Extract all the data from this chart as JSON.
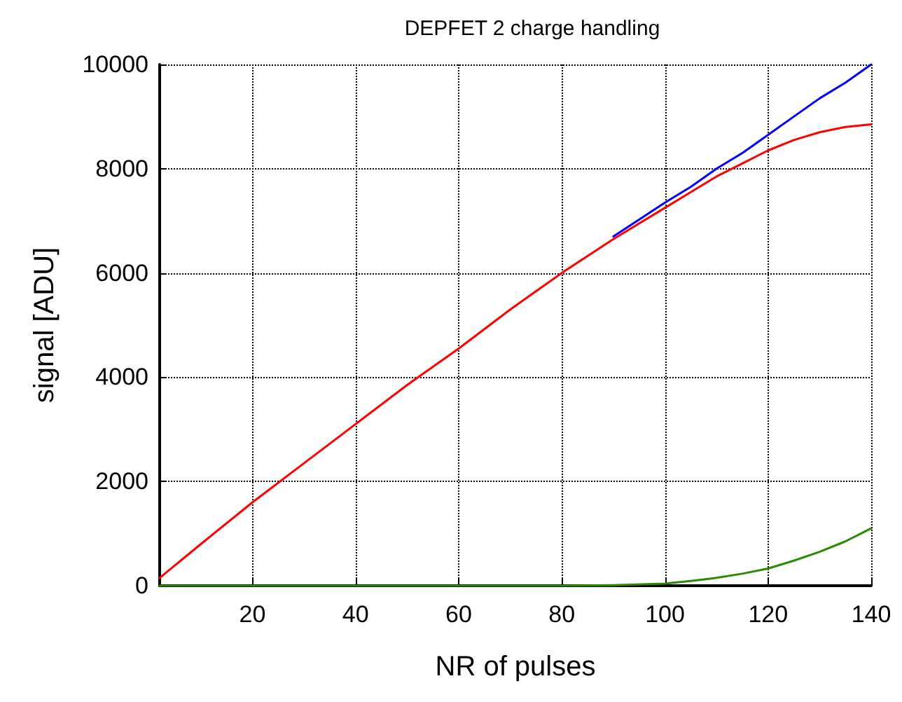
{
  "chart_data": {
    "type": "line",
    "title": "DEPFET 2 charge handling",
    "xlabel": "NR of pulses",
    "ylabel": "signal [ADU]",
    "x": [
      2,
      10,
      20,
      30,
      40,
      50,
      60,
      70,
      80,
      90,
      100,
      105,
      110,
      115,
      120,
      125,
      130,
      135,
      140
    ],
    "series": [
      {
        "color": "#0000ff",
        "values": [
          null,
          null,
          null,
          null,
          null,
          null,
          null,
          null,
          null,
          6700,
          7350,
          7650,
          8000,
          8300,
          8650,
          9000,
          9350,
          9650,
          10000
        ]
      },
      {
        "color": "#ff0000",
        "values": [
          150,
          800,
          1600,
          2350,
          3100,
          3850,
          4550,
          5300,
          6000,
          6650,
          7250,
          7550,
          7850,
          8100,
          8350,
          8550,
          8700,
          8800,
          8850
        ]
      },
      {
        "color": "#2a8a00",
        "values": [
          0,
          0,
          0,
          0,
          0,
          0,
          0,
          0,
          0,
          10,
          40,
          90,
          150,
          230,
          330,
          480,
          650,
          850,
          1100
        ]
      }
    ],
    "xlim": [
      2,
      140
    ],
    "xticks": [
      20,
      40,
      60,
      80,
      100,
      120,
      140
    ],
    "ylim": [
      0,
      10000
    ],
    "yticks": [
      0,
      2000,
      4000,
      6000,
      8000,
      10000
    ],
    "grid": true,
    "marker": "none",
    "line_style": "solid"
  }
}
